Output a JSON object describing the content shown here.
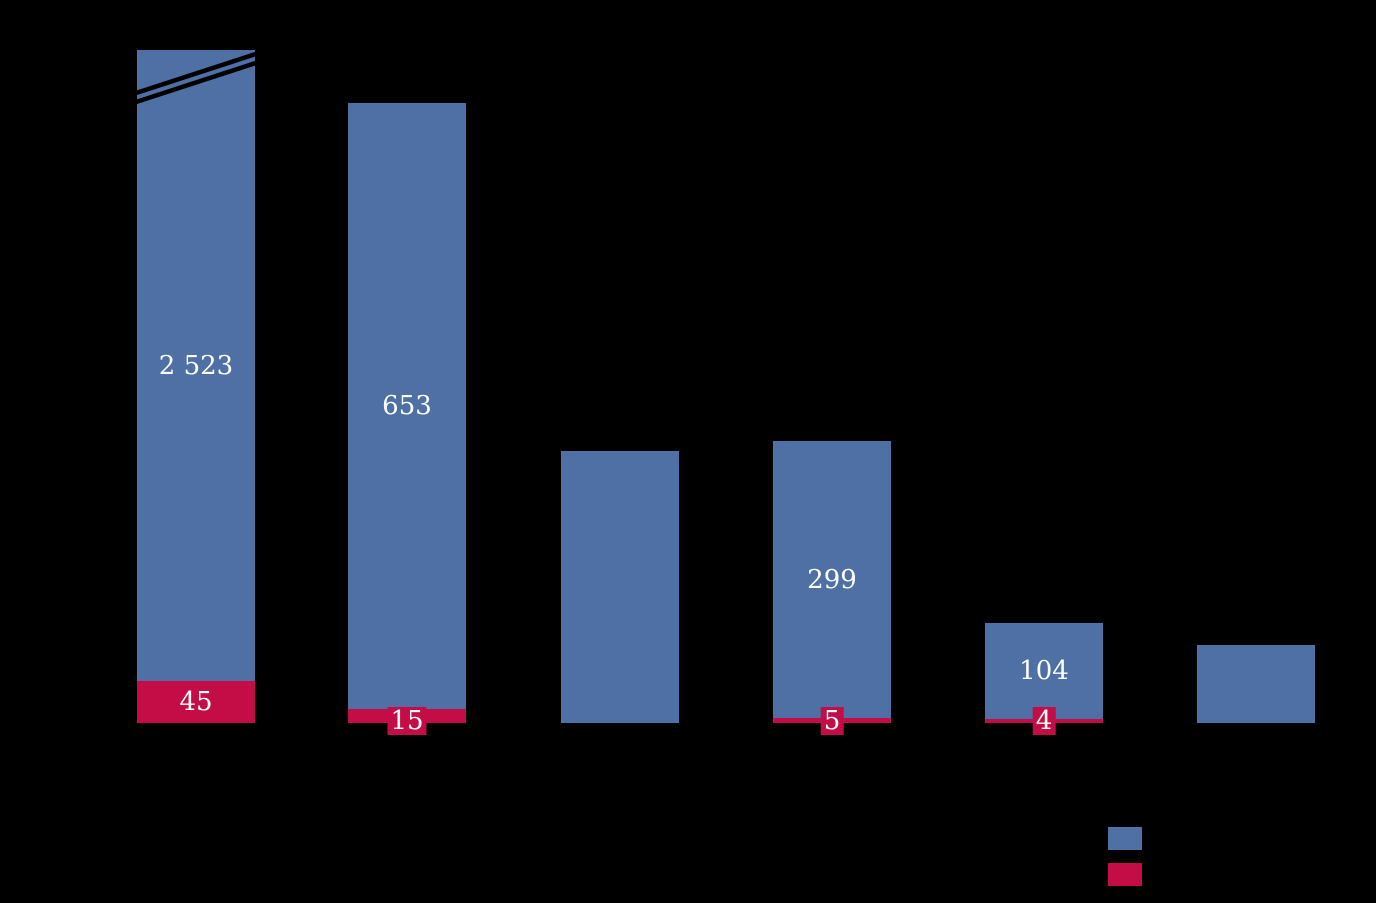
{
  "chart_data": {
    "type": "bar",
    "stacked": true,
    "background_color": "#000000",
    "grid": false,
    "axis_text_visible": false,
    "axis_break_bar_index": 0,
    "categories": [
      "",
      "",
      "",
      "",
      "",
      ""
    ],
    "series": [
      {
        "name": "blue-series",
        "color": "#4E70A4",
        "values": [
          2523,
          653,
          293,
          299,
          104,
          84
        ],
        "values_estimated_indices": [
          2,
          5
        ],
        "labels": [
          "2 523",
          "653",
          "",
          "299",
          "104",
          ""
        ]
      },
      {
        "name": "red-series",
        "color": "#C40D46",
        "values": [
          45,
          15,
          0,
          5,
          4,
          0
        ],
        "labels": [
          "45",
          "15",
          "",
          "5",
          "4",
          ""
        ]
      }
    ],
    "value_label_color": "#FFFFFF",
    "legend": {
      "position": "bottom-right",
      "entries": [
        {
          "swatch_color": "#4E70A4",
          "label": ""
        },
        {
          "swatch_color": "#C40D46",
          "label": ""
        }
      ]
    }
  }
}
